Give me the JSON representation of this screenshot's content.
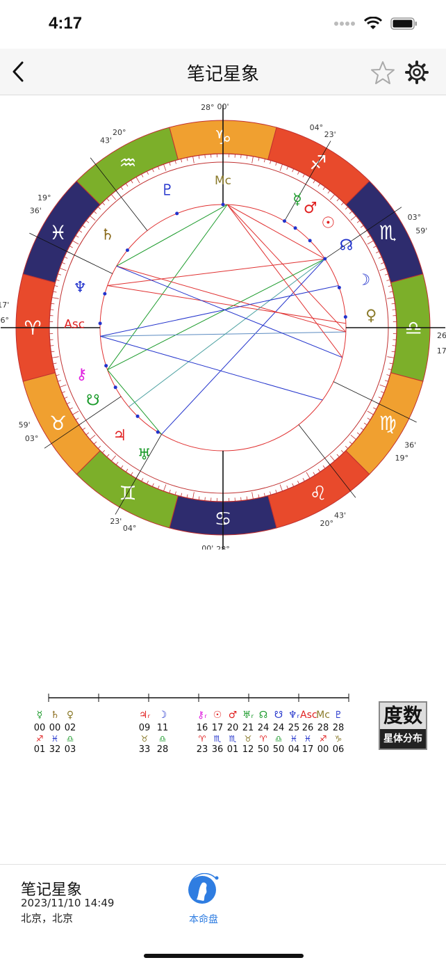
{
  "status_bar": {
    "time": "4:17"
  },
  "navbar": {
    "title": "笔记星象",
    "back_icon": "chevron-left-icon",
    "favorite_icon": "star-icon",
    "settings_icon": "gear-icon"
  },
  "chart": {
    "cusp_labels": [
      {
        "deg": "28°",
        "min": "00'"
      },
      {
        "deg": "04°",
        "min": "23'"
      },
      {
        "deg": "03°",
        "min": "59'"
      },
      {
        "deg": "26°",
        "min": "17'"
      },
      {
        "deg": "36'",
        "min": "19°"
      },
      {
        "deg": "43'",
        "min": "20°"
      },
      {
        "deg": "28°",
        "min": "00'"
      },
      {
        "deg": "04°",
        "min": "23'"
      },
      {
        "deg": "03°",
        "min": "59'"
      },
      {
        "deg": "26°",
        "min": "17'"
      },
      {
        "deg": "36'",
        "min": "19°"
      },
      {
        "deg": "43'",
        "min": "20°"
      }
    ],
    "signs": [
      "♑",
      "♐",
      "♏",
      "♎",
      "♍",
      "♌",
      "♋",
      "♊",
      "♉",
      "♈",
      "♓",
      "♒"
    ],
    "planets": [
      {
        "glyph": "Mc",
        "color": "#8a7a2a"
      },
      {
        "glyph": "♇",
        "color": "#2233cc"
      },
      {
        "glyph": "☿",
        "color": "#1a9a2a"
      },
      {
        "glyph": "♂",
        "color": "#e02020"
      },
      {
        "glyph": "☉",
        "color": "#e02020"
      },
      {
        "glyph": "♄",
        "color": "#8a6a1a"
      },
      {
        "glyph": "☊",
        "color": "#2233cc"
      },
      {
        "glyph": "☽",
        "color": "#2233cc"
      },
      {
        "glyph": "♀",
        "color": "#8a7a2a"
      },
      {
        "glyph": "♆",
        "color": "#2233cc"
      },
      {
        "glyph": "Asc",
        "color": "#e02020"
      },
      {
        "glyph": "⚷",
        "color": "#e020e0"
      },
      {
        "glyph": "☋",
        "color": "#1a9a2a"
      },
      {
        "glyph": "♃",
        "color": "#e02020"
      },
      {
        "glyph": "♅",
        "color": "#1a9a2a"
      }
    ],
    "retro_mark": "R"
  },
  "degree_table": {
    "columns": [
      {
        "glyph": "☿",
        "gcolor": "#1a9a2a",
        "num": "00",
        "sign": "♐",
        "scolor": "#e02020",
        "min": "01"
      },
      {
        "glyph": "♄",
        "gcolor": "#8a6a1a",
        "num": "00",
        "sign": "♓",
        "scolor": "#2233cc",
        "min": "32"
      },
      {
        "glyph": "♀",
        "gcolor": "#8a7a2a",
        "num": "02",
        "sign": "♎",
        "scolor": "#1a9a2a",
        "min": "03"
      },
      {
        "glyph": "♃ᵣ",
        "gcolor": "#e02020",
        "num": "09",
        "sign": "♉",
        "scolor": "#8a7a2a",
        "min": "33"
      },
      {
        "glyph": "☽",
        "gcolor": "#2233cc",
        "num": "11",
        "sign": "♎",
        "scolor": "#1a9a2a",
        "min": "28"
      },
      {
        "glyph": "⚷ᵣ",
        "gcolor": "#e020e0",
        "num": "16",
        "sign": "♈",
        "scolor": "#e02020",
        "min": "23"
      },
      {
        "glyph": "☉",
        "gcolor": "#e02020",
        "num": "17",
        "sign": "♏",
        "scolor": "#2233cc",
        "min": "36"
      },
      {
        "glyph": "♂",
        "gcolor": "#e02020",
        "num": "20",
        "sign": "♏",
        "scolor": "#2233cc",
        "min": "01"
      },
      {
        "glyph": "♅ᵣ",
        "gcolor": "#1a9a2a",
        "num": "21",
        "sign": "♉",
        "scolor": "#8a7a2a",
        "min": "12"
      },
      {
        "glyph": "☊",
        "gcolor": "#1a9a2a",
        "num": "24",
        "sign": "♈",
        "scolor": "#e02020",
        "min": "50"
      },
      {
        "glyph": "☋",
        "gcolor": "#2233cc",
        "num": "24",
        "sign": "♎",
        "scolor": "#1a9a2a",
        "min": "50"
      },
      {
        "glyph": "♆ᵣ",
        "gcolor": "#2233cc",
        "num": "25",
        "sign": "♓",
        "scolor": "#2233cc",
        "min": "04"
      },
      {
        "glyph": "Asc",
        "gcolor": "#e02020",
        "num": "26",
        "sign": "♓",
        "scolor": "#2233cc",
        "min": "17"
      },
      {
        "glyph": "Mc",
        "gcolor": "#8a7a2a",
        "num": "28",
        "sign": "♐",
        "scolor": "#e02020",
        "min": "00"
      },
      {
        "glyph": "♇",
        "gcolor": "#2233cc",
        "num": "28",
        "sign": "♑",
        "scolor": "#8a7a2a",
        "min": "06"
      }
    ]
  },
  "degree_button": {
    "top": "度数",
    "bottom": "星体分布"
  },
  "footer": {
    "title": "笔记星象",
    "datetime": "2023/11/10 14:49",
    "location": "北京，北京",
    "tab_label": "本命盘"
  }
}
